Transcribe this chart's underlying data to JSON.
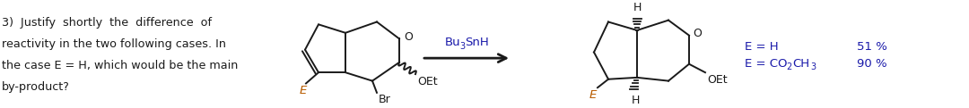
{
  "bg_color": "#ffffff",
  "text_color": "#1a1a1a",
  "blue_color": "#1a1aaa",
  "orange_color": "#b85c00",
  "question_lines": [
    "3)  Justify  shortly  the  difference  of",
    "reactivity in the two following cases. In",
    "the case E = H, which would be the main",
    "by-product?"
  ],
  "reagent_text": "Bu3SnH",
  "yield_51": "51 %",
  "yield_90": "90 %",
  "figsize": [
    10.8,
    1.21
  ],
  "dpi": 100
}
